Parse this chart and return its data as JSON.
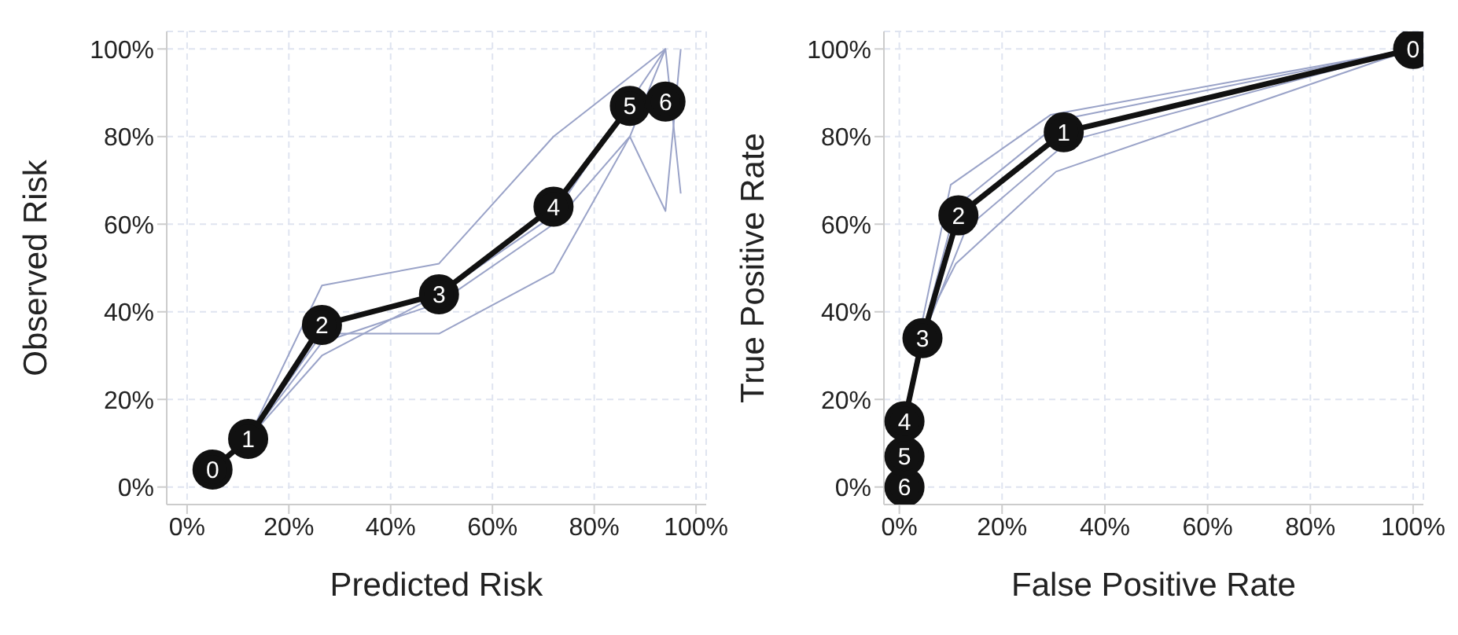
{
  "chart_data": [
    {
      "type": "line",
      "xlabel": "Predicted Risk",
      "ylabel": "Observed Risk",
      "xlim": [
        -4,
        102
      ],
      "ylim": [
        -4,
        104
      ],
      "xticks": [
        {
          "value": 0,
          "label": "0%"
        },
        {
          "value": 20,
          "label": "20%"
        },
        {
          "value": 40,
          "label": "40%"
        },
        {
          "value": 60,
          "label": "60%"
        },
        {
          "value": 80,
          "label": "80%"
        },
        {
          "value": 100,
          "label": "100%"
        }
      ],
      "yticks": [
        {
          "value": 0,
          "label": "0%"
        },
        {
          "value": 20,
          "label": "20%"
        },
        {
          "value": 40,
          "label": "40%"
        },
        {
          "value": 60,
          "label": "60%"
        },
        {
          "value": 80,
          "label": "80%"
        },
        {
          "value": 100,
          "label": "100%"
        }
      ],
      "grid": true,
      "series": [
        {
          "color": "#9aa3c8",
          "marker": "none",
          "x": [
            5,
            12,
            26.5,
            49.5,
            72,
            94
          ],
          "values": [
            4,
            11,
            46,
            51,
            80,
            100
          ]
        },
        {
          "color": "#9aa3c8",
          "marker": "none",
          "x": [
            5,
            12,
            26.5,
            49.5,
            72,
            87,
            94,
            97
          ],
          "values": [
            4,
            11,
            35,
            35,
            49,
            80,
            63,
            100
          ]
        },
        {
          "color": "#9aa3c8",
          "marker": "none",
          "x": [
            5,
            12,
            26.5,
            49.5,
            72,
            87,
            94,
            97
          ],
          "values": [
            4,
            11,
            33,
            42,
            60,
            80,
            100,
            67
          ]
        },
        {
          "color": "#9aa3c8",
          "marker": "none",
          "x": [
            5,
            12,
            26.5,
            49.5,
            72,
            94
          ],
          "values": [
            4,
            11,
            30,
            44,
            62,
            100
          ]
        },
        {
          "color": "#111111",
          "marker": "circle",
          "x": [
            5,
            12,
            26.5,
            49.5,
            72,
            87,
            94
          ],
          "values": [
            4,
            11,
            37,
            44,
            64,
            87,
            88
          ]
        }
      ],
      "annotations": [
        {
          "text": "0",
          "x": 5,
          "y": 4
        },
        {
          "text": "1",
          "x": 12,
          "y": 11
        },
        {
          "text": "2",
          "x": 26.5,
          "y": 37
        },
        {
          "text": "3",
          "x": 49.5,
          "y": 44
        },
        {
          "text": "4",
          "x": 72,
          "y": 64
        },
        {
          "text": "5",
          "x": 87,
          "y": 87
        },
        {
          "text": "6",
          "x": 94,
          "y": 88
        }
      ]
    },
    {
      "type": "line",
      "xlabel": "False Positive Rate",
      "ylabel": "True Positive Rate",
      "xlim": [
        -3,
        102
      ],
      "ylim": [
        -4,
        104
      ],
      "xticks": [
        {
          "value": 0,
          "label": "0%"
        },
        {
          "value": 20,
          "label": "20%"
        },
        {
          "value": 40,
          "label": "40%"
        },
        {
          "value": 60,
          "label": "60%"
        },
        {
          "value": 80,
          "label": "80%"
        },
        {
          "value": 100,
          "label": "100%"
        }
      ],
      "yticks": [
        {
          "value": 0,
          "label": "0%"
        },
        {
          "value": 20,
          "label": "20%"
        },
        {
          "value": 40,
          "label": "40%"
        },
        {
          "value": 60,
          "label": "60%"
        },
        {
          "value": 80,
          "label": "80%"
        },
        {
          "value": 100,
          "label": "100%"
        }
      ],
      "grid": true,
      "series": [
        {
          "color": "#9aa3c8",
          "marker": "none",
          "x": [
            1,
            4.5,
            10,
            29.5,
            100
          ],
          "values": [
            14,
            38,
            69,
            85,
            100
          ]
        },
        {
          "color": "#9aa3c8",
          "marker": "none",
          "x": [
            1,
            4.5,
            11,
            30.5,
            100
          ],
          "values": [
            14,
            36,
            51,
            72,
            100
          ]
        },
        {
          "color": "#9aa3c8",
          "marker": "none",
          "x": [
            1,
            4.5,
            13,
            33,
            100
          ],
          "values": [
            14,
            34,
            59,
            79,
            100
          ]
        },
        {
          "color": "#9aa3c8",
          "marker": "none",
          "x": [
            1,
            4.5,
            11,
            32,
            100
          ],
          "values": [
            14,
            35,
            64,
            84,
            100
          ]
        },
        {
          "color": "#111111",
          "marker": "circle",
          "x": [
            1,
            1,
            1,
            4.5,
            11.5,
            32,
            100
          ],
          "values": [
            0,
            7,
            15,
            34,
            62,
            81,
            100
          ]
        }
      ],
      "annotations": [
        {
          "text": "0",
          "x": 100,
          "y": 100
        },
        {
          "text": "1",
          "x": 32,
          "y": 81
        },
        {
          "text": "2",
          "x": 11.5,
          "y": 62
        },
        {
          "text": "3",
          "x": 4.5,
          "y": 34
        },
        {
          "text": "4",
          "x": 1,
          "y": 15
        },
        {
          "text": "5",
          "x": 1,
          "y": 7
        },
        {
          "text": "6",
          "x": 1,
          "y": 0
        }
      ]
    }
  ]
}
